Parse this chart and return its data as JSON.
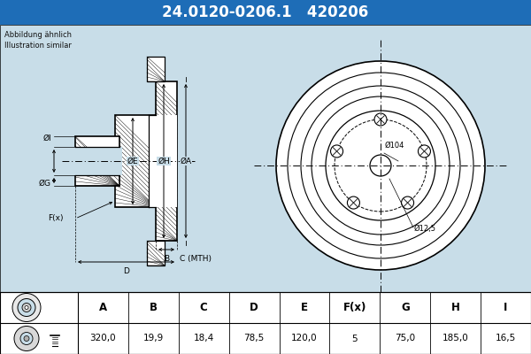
{
  "title_part_number": "24.0120-0206.1",
  "title_code": "420206",
  "header_bg": "#1e6db7",
  "header_text_color": "#ffffff",
  "body_bg": "#c8dde8",
  "table_bg": "#ffffff",
  "note_text": "Abbildung ähnlich\nIllustration similar",
  "columns": [
    "A",
    "B",
    "C",
    "D",
    "E",
    "F(x)",
    "G",
    "H",
    "I"
  ],
  "values": [
    "320,0",
    "19,9",
    "18,4",
    "78,5",
    "120,0",
    "5",
    "75,0",
    "185,0",
    "16,5"
  ],
  "line_color": "#000000",
  "diagram_bg": "#c8dde8",
  "ate_watermark_color": "#b0c8d8"
}
